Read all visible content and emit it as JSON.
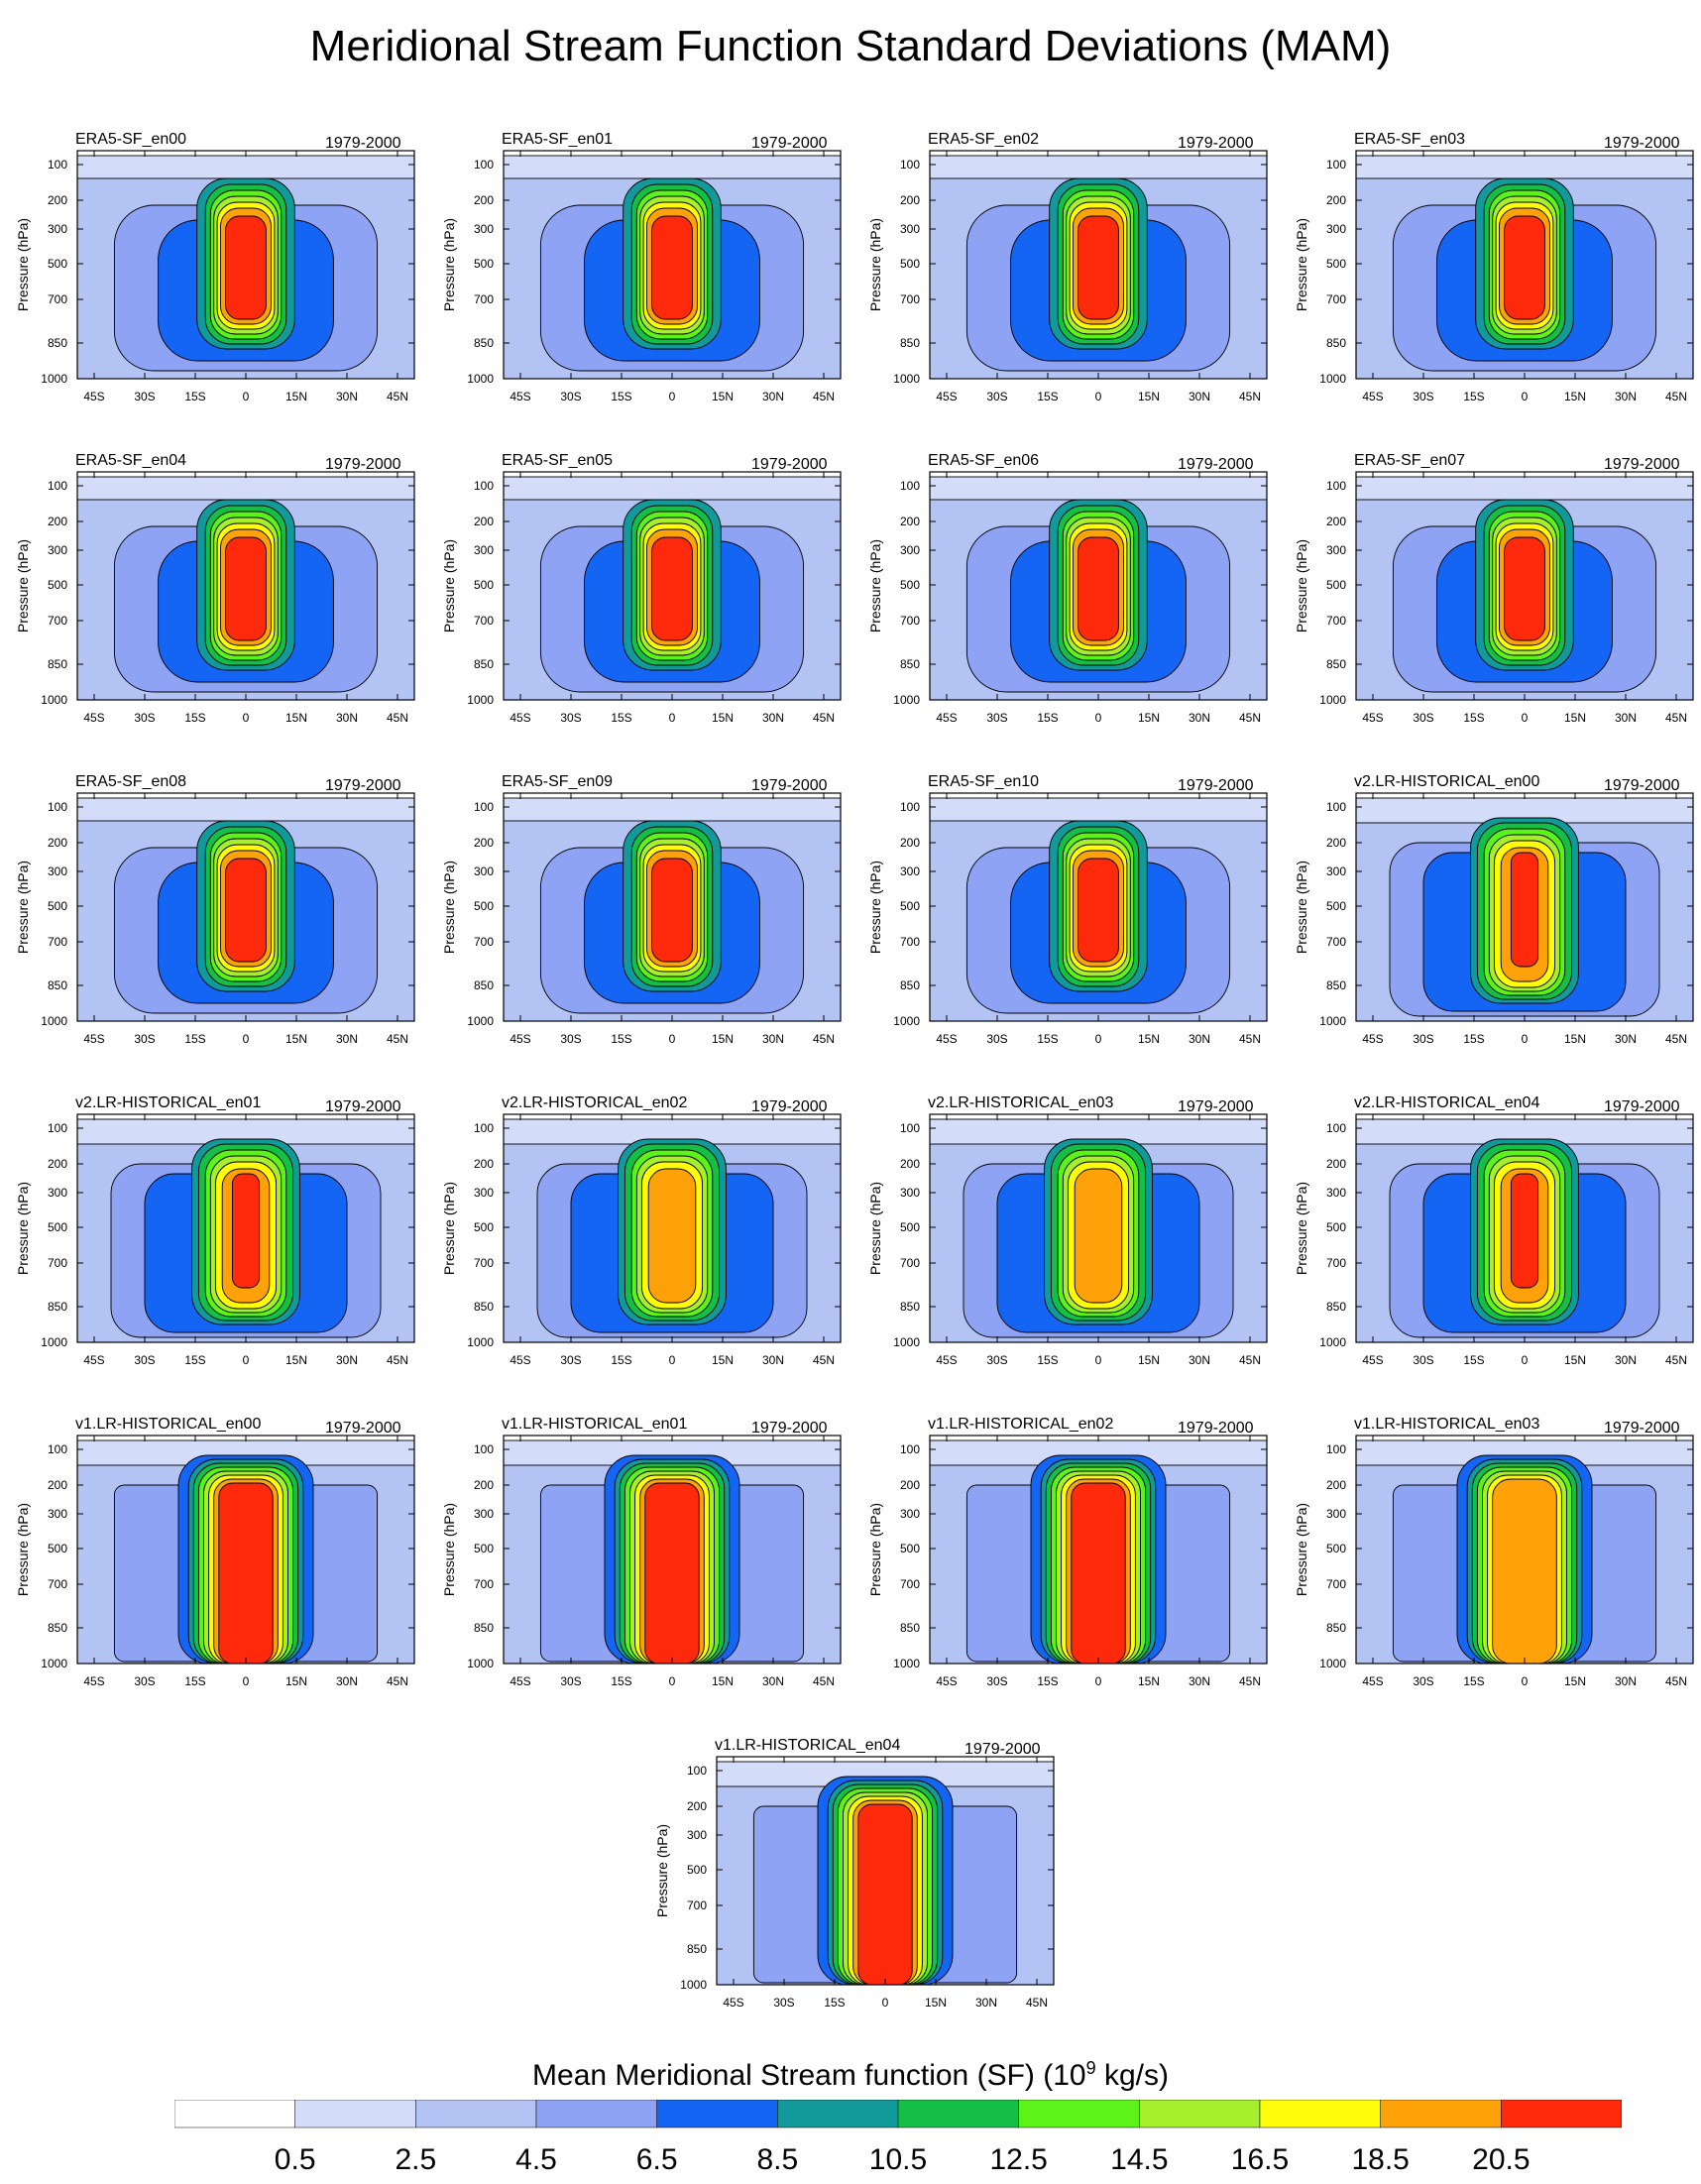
{
  "title": "Meridional Stream Function Standard Deviations (MAM)",
  "chart_data": {
    "type": "contour",
    "xlabel": "",
    "ylabel": "Pressure (hPa)",
    "x_ticks": [
      "45S",
      "30S",
      "15S",
      "0",
      "15N",
      "30N",
      "45N"
    ],
    "y_ticks": [
      "100",
      "200",
      "300",
      "500",
      "700",
      "850",
      "1000"
    ],
    "xlim_deg": [
      -50,
      50
    ],
    "ylim_hPa": [
      1000,
      70
    ],
    "panels": [
      {
        "name": "ERA5-SF_en00",
        "period": "1979-2000",
        "peak": 21.5,
        "family": "era5"
      },
      {
        "name": "ERA5-SF_en01",
        "period": "1979-2000",
        "peak": 21.0,
        "family": "era5"
      },
      {
        "name": "ERA5-SF_en02",
        "period": "1979-2000",
        "peak": 21.0,
        "family": "era5"
      },
      {
        "name": "ERA5-SF_en03",
        "period": "1979-2000",
        "peak": 21.0,
        "family": "era5"
      },
      {
        "name": "ERA5-SF_en04",
        "period": "1979-2000",
        "peak": 21.0,
        "family": "era5"
      },
      {
        "name": "ERA5-SF_en05",
        "period": "1979-2000",
        "peak": 21.0,
        "family": "era5"
      },
      {
        "name": "ERA5-SF_en06",
        "period": "1979-2000",
        "peak": 20.8,
        "family": "era5"
      },
      {
        "name": "ERA5-SF_en07",
        "period": "1979-2000",
        "peak": 20.8,
        "family": "era5"
      },
      {
        "name": "ERA5-SF_en08",
        "period": "1979-2000",
        "peak": 20.8,
        "family": "era5"
      },
      {
        "name": "ERA5-SF_en09",
        "period": "1979-2000",
        "peak": 21.0,
        "family": "era5"
      },
      {
        "name": "ERA5-SF_en10",
        "period": "1979-2000",
        "peak": 21.0,
        "family": "era5"
      },
      {
        "name": "v2.LR-HISTORICAL_en00",
        "period": "1979-2000",
        "peak": 21.0,
        "family": "v2"
      },
      {
        "name": "v2.LR-HISTORICAL_en01",
        "period": "1979-2000",
        "peak": 21.0,
        "family": "v2"
      },
      {
        "name": "v2.LR-HISTORICAL_en02",
        "period": "1979-2000",
        "peak": 19.5,
        "family": "v2"
      },
      {
        "name": "v2.LR-HISTORICAL_en03",
        "period": "1979-2000",
        "peak": 18.8,
        "family": "v2"
      },
      {
        "name": "v2.LR-HISTORICAL_en04",
        "period": "1979-2000",
        "peak": 21.0,
        "family": "v2"
      },
      {
        "name": "v1.LR-HISTORICAL_en00",
        "period": "1979-2000",
        "peak": 23.0,
        "family": "v1"
      },
      {
        "name": "v1.LR-HISTORICAL_en01",
        "period": "1979-2000",
        "peak": 21.5,
        "family": "v1"
      },
      {
        "name": "v1.LR-HISTORICAL_en02",
        "period": "1979-2000",
        "peak": 21.5,
        "family": "v1"
      },
      {
        "name": "v1.LR-HISTORICAL_en03",
        "period": "1979-2000",
        "peak": 19.0,
        "family": "v1"
      },
      {
        "name": "v1.LR-HISTORICAL_en04",
        "period": "1979-2000",
        "peak": 23.0,
        "family": "v1"
      }
    ],
    "colorbar": {
      "title": "Mean Meridional Stream function (SF) (10",
      "title_exp": "9",
      "title_unit": " kg/s)",
      "levels": [
        0.5,
        2.5,
        4.5,
        6.5,
        8.5,
        10.5,
        12.5,
        14.5,
        16.5,
        18.5,
        20.5
      ],
      "labels": [
        "0.5",
        "2.5",
        "4.5",
        "6.5",
        "8.5",
        "10.5",
        "12.5",
        "14.5",
        "16.5",
        "18.5",
        "20.5"
      ],
      "colors": [
        "#ffffff",
        "#d3dcf8",
        "#b3c3f4",
        "#8ea3f3",
        "#1565f5",
        "#12999a",
        "#13bf45",
        "#5cf318",
        "#a6f02b",
        "#fffb09",
        "#ffa20a",
        "#ff2a0c"
      ]
    }
  }
}
